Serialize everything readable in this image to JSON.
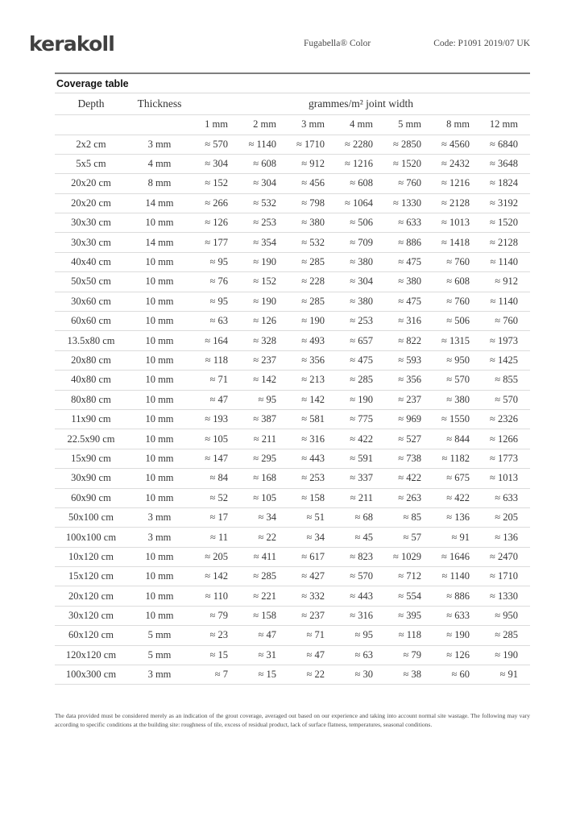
{
  "header": {
    "logo": "kerakoll",
    "product": "Fugabella® Color",
    "code": "Code: P1091 2019/07 UK"
  },
  "table": {
    "title": "Coverage table",
    "depth_label": "Depth",
    "thickness_label": "Thickness",
    "group_label": "grammes/m² joint width",
    "joint_widths": [
      "1 mm",
      "2 mm",
      "3 mm",
      "4 mm",
      "5 mm",
      "8 mm",
      "12 mm"
    ],
    "rows": [
      {
        "depth": "2x2 cm",
        "thickness": "3 mm",
        "values": [
          "≈ 570",
          "≈ 1140",
          "≈ 1710",
          "≈ 2280",
          "≈ 2850",
          "≈ 4560",
          "≈ 6840"
        ]
      },
      {
        "depth": "5x5 cm",
        "thickness": "4 mm",
        "values": [
          "≈ 304",
          "≈ 608",
          "≈ 912",
          "≈ 1216",
          "≈ 1520",
          "≈ 2432",
          "≈ 3648"
        ]
      },
      {
        "depth": "20x20 cm",
        "thickness": "8 mm",
        "values": [
          "≈ 152",
          "≈ 304",
          "≈ 456",
          "≈ 608",
          "≈ 760",
          "≈ 1216",
          "≈ 1824"
        ]
      },
      {
        "depth": "20x20 cm",
        "thickness": "14 mm",
        "values": [
          "≈ 266",
          "≈ 532",
          "≈ 798",
          "≈ 1064",
          "≈ 1330",
          "≈ 2128",
          "≈ 3192"
        ]
      },
      {
        "depth": "30x30 cm",
        "thickness": "10 mm",
        "values": [
          "≈ 126",
          "≈ 253",
          "≈ 380",
          "≈ 506",
          "≈ 633",
          "≈ 1013",
          "≈ 1520"
        ]
      },
      {
        "depth": "30x30 cm",
        "thickness": "14 mm",
        "values": [
          "≈ 177",
          "≈ 354",
          "≈ 532",
          "≈ 709",
          "≈ 886",
          "≈ 1418",
          "≈ 2128"
        ]
      },
      {
        "depth": "40x40 cm",
        "thickness": "10 mm",
        "values": [
          "≈ 95",
          "≈ 190",
          "≈ 285",
          "≈ 380",
          "≈ 475",
          "≈ 760",
          "≈ 1140"
        ]
      },
      {
        "depth": "50x50 cm",
        "thickness": "10 mm",
        "values": [
          "≈ 76",
          "≈ 152",
          "≈ 228",
          "≈ 304",
          "≈ 380",
          "≈ 608",
          "≈ 912"
        ]
      },
      {
        "depth": "30x60 cm",
        "thickness": "10 mm",
        "values": [
          "≈ 95",
          "≈ 190",
          "≈ 285",
          "≈ 380",
          "≈ 475",
          "≈ 760",
          "≈ 1140"
        ]
      },
      {
        "depth": "60x60 cm",
        "thickness": "10 mm",
        "values": [
          "≈ 63",
          "≈ 126",
          "≈ 190",
          "≈ 253",
          "≈ 316",
          "≈ 506",
          "≈ 760"
        ]
      },
      {
        "depth": "13.5x80 cm",
        "thickness": "10 mm",
        "values": [
          "≈ 164",
          "≈ 328",
          "≈ 493",
          "≈ 657",
          "≈ 822",
          "≈ 1315",
          "≈ 1973"
        ]
      },
      {
        "depth": "20x80 cm",
        "thickness": "10 mm",
        "values": [
          "≈ 118",
          "≈ 237",
          "≈ 356",
          "≈ 475",
          "≈ 593",
          "≈ 950",
          "≈ 1425"
        ]
      },
      {
        "depth": "40x80 cm",
        "thickness": "10 mm",
        "values": [
          "≈ 71",
          "≈ 142",
          "≈ 213",
          "≈ 285",
          "≈ 356",
          "≈ 570",
          "≈ 855"
        ]
      },
      {
        "depth": "80x80 cm",
        "thickness": "10 mm",
        "values": [
          "≈ 47",
          "≈ 95",
          "≈ 142",
          "≈ 190",
          "≈ 237",
          "≈ 380",
          "≈ 570"
        ]
      },
      {
        "depth": "11x90 cm",
        "thickness": "10 mm",
        "values": [
          "≈ 193",
          "≈ 387",
          "≈ 581",
          "≈ 775",
          "≈ 969",
          "≈ 1550",
          "≈ 2326"
        ]
      },
      {
        "depth": "22.5x90 cm",
        "thickness": "10 mm",
        "values": [
          "≈ 105",
          "≈ 211",
          "≈ 316",
          "≈ 422",
          "≈ 527",
          "≈ 844",
          "≈ 1266"
        ]
      },
      {
        "depth": "15x90 cm",
        "thickness": "10 mm",
        "values": [
          "≈ 147",
          "≈ 295",
          "≈ 443",
          "≈ 591",
          "≈ 738",
          "≈ 1182",
          "≈ 1773"
        ]
      },
      {
        "depth": "30x90 cm",
        "thickness": "10 mm",
        "values": [
          "≈ 84",
          "≈ 168",
          "≈ 253",
          "≈ 337",
          "≈ 422",
          "≈ 675",
          "≈ 1013"
        ]
      },
      {
        "depth": "60x90 cm",
        "thickness": "10 mm",
        "values": [
          "≈ 52",
          "≈ 105",
          "≈ 158",
          "≈ 211",
          "≈ 263",
          "≈ 422",
          "≈ 633"
        ]
      },
      {
        "depth": "50x100 cm",
        "thickness": "3 mm",
        "values": [
          "≈ 17",
          "≈ 34",
          "≈ 51",
          "≈ 68",
          "≈ 85",
          "≈ 136",
          "≈ 205"
        ]
      },
      {
        "depth": "100x100 cm",
        "thickness": "3 mm",
        "values": [
          "≈ 11",
          "≈ 22",
          "≈ 34",
          "≈ 45",
          "≈ 57",
          "≈ 91",
          "≈ 136"
        ]
      },
      {
        "depth": "10x120 cm",
        "thickness": "10 mm",
        "values": [
          "≈ 205",
          "≈ 411",
          "≈ 617",
          "≈ 823",
          "≈ 1029",
          "≈ 1646",
          "≈ 2470"
        ]
      },
      {
        "depth": "15x120 cm",
        "thickness": "10 mm",
        "values": [
          "≈ 142",
          "≈ 285",
          "≈ 427",
          "≈ 570",
          "≈ 712",
          "≈ 1140",
          "≈ 1710"
        ]
      },
      {
        "depth": "20x120 cm",
        "thickness": "10 mm",
        "values": [
          "≈ 110",
          "≈ 221",
          "≈ 332",
          "≈ 443",
          "≈ 554",
          "≈ 886",
          "≈ 1330"
        ]
      },
      {
        "depth": "30x120 cm",
        "thickness": "10 mm",
        "values": [
          "≈ 79",
          "≈ 158",
          "≈ 237",
          "≈ 316",
          "≈ 395",
          "≈ 633",
          "≈ 950"
        ]
      },
      {
        "depth": "60x120 cm",
        "thickness": "5 mm",
        "values": [
          "≈ 23",
          "≈ 47",
          "≈ 71",
          "≈ 95",
          "≈ 118",
          "≈ 190",
          "≈ 285"
        ]
      },
      {
        "depth": "120x120 cm",
        "thickness": "5 mm",
        "values": [
          "≈ 15",
          "≈ 31",
          "≈ 47",
          "≈ 63",
          "≈ 79",
          "≈ 126",
          "≈ 190"
        ]
      },
      {
        "depth": "100x300 cm",
        "thickness": "3 mm",
        "values": [
          "≈ 7",
          "≈ 15",
          "≈ 22",
          "≈ 30",
          "≈ 38",
          "≈ 60",
          "≈ 91"
        ]
      }
    ]
  },
  "footer": {
    "note": "The data provided must be considered merely as an indication of the grout coverage, averaged out based on our experience and taking into account normal site wastage. The following may vary according to specific conditions at the building site: roughness of tile, excess of residual product, lack of surface flatness, temperatures, seasonal conditions."
  }
}
